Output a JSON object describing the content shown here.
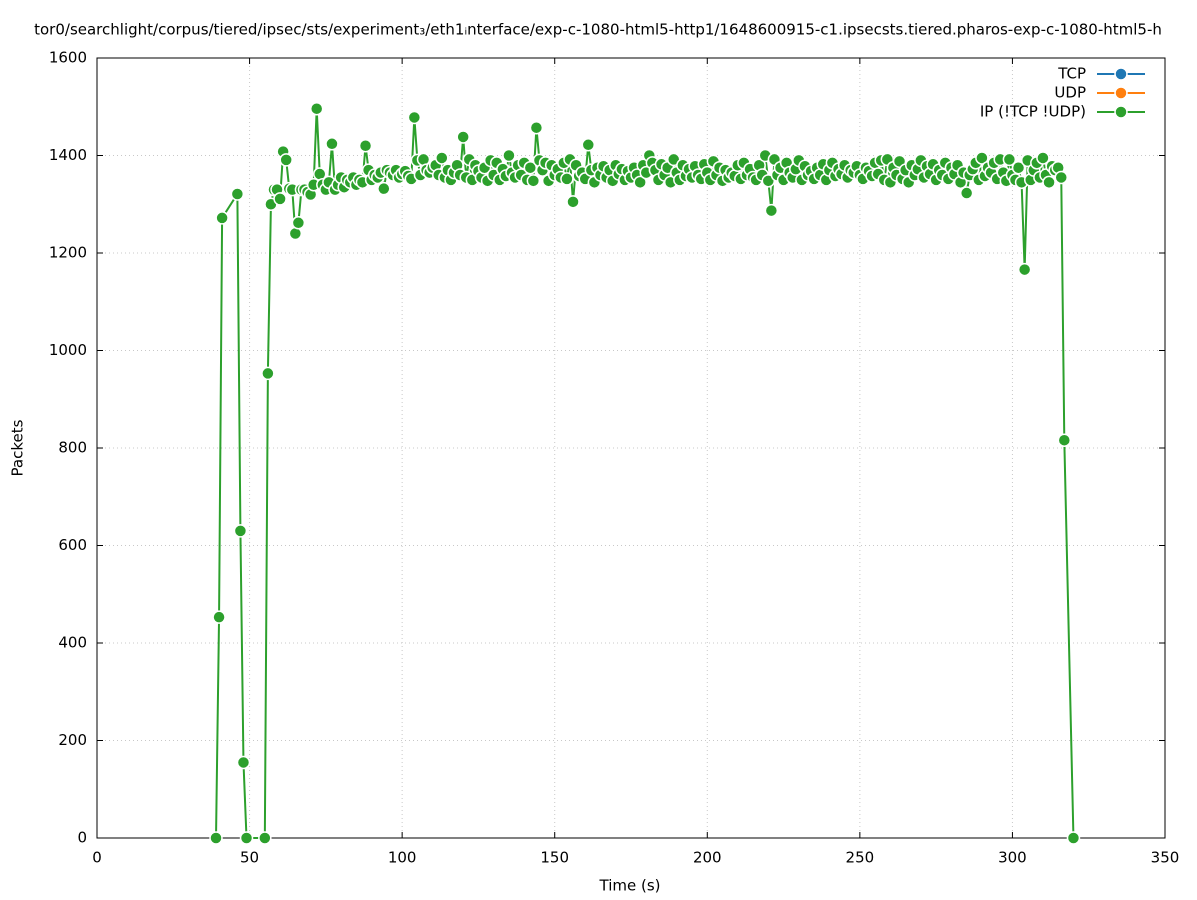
{
  "chart_data": {
    "type": "line",
    "title": "tor0/searchlight/corpus/tiered/ipsec/sts/experiment₃/eth1ᵢnterface/exp-c-1080-html5-http1/1648600915-c1.ipsecsts.tiered.pharos-exp-c-1080-html5-h",
    "xlabel": "Time (s)",
    "ylabel": "Packets",
    "xlim": [
      0,
      350
    ],
    "xticks": [
      0,
      50,
      100,
      150,
      200,
      250,
      300,
      350
    ],
    "ylim": [
      0,
      1600
    ],
    "yticks": [
      0,
      200,
      400,
      600,
      800,
      1000,
      1200,
      1400,
      1600
    ],
    "grid": true,
    "legend": "top-right",
    "series": [
      {
        "name": "TCP",
        "color": "#1f77b4",
        "x": [],
        "values": []
      },
      {
        "name": "UDP",
        "color": "#ff7f0e",
        "x": [],
        "values": []
      },
      {
        "name": "IP (!TCP  !UDP)",
        "color": "#2ca02c",
        "x": [
          39,
          40,
          41,
          46,
          47,
          48,
          49,
          55,
          56,
          57,
          58,
          59,
          60,
          61,
          62,
          63,
          64,
          65,
          66,
          67,
          68,
          69,
          70,
          71,
          72,
          73,
          74,
          75,
          76,
          77,
          78,
          79,
          80,
          81,
          82,
          83,
          84,
          85,
          86,
          87,
          88,
          89,
          90,
          91,
          92,
          93,
          94,
          95,
          96,
          97,
          98,
          99,
          100,
          101,
          102,
          103,
          104,
          105,
          106,
          107,
          108,
          109,
          110,
          111,
          112,
          113,
          114,
          115,
          116,
          117,
          118,
          119,
          120,
          121,
          122,
          123,
          124,
          125,
          126,
          127,
          128,
          129,
          130,
          131,
          132,
          133,
          134,
          135,
          136,
          137,
          138,
          139,
          140,
          141,
          142,
          143,
          144,
          145,
          146,
          147,
          148,
          149,
          150,
          151,
          152,
          153,
          154,
          155,
          156,
          157,
          158,
          159,
          160,
          161,
          162,
          163,
          164,
          165,
          166,
          167,
          168,
          169,
          170,
          171,
          172,
          173,
          174,
          175,
          176,
          177,
          178,
          179,
          180,
          181,
          182,
          183,
          184,
          185,
          186,
          187,
          188,
          189,
          190,
          191,
          192,
          193,
          194,
          195,
          196,
          197,
          198,
          199,
          200,
          201,
          202,
          203,
          204,
          205,
          206,
          207,
          208,
          209,
          210,
          211,
          212,
          213,
          214,
          215,
          216,
          217,
          218,
          219,
          220,
          221,
          222,
          223,
          224,
          225,
          226,
          227,
          228,
          229,
          230,
          231,
          232,
          233,
          234,
          235,
          236,
          237,
          238,
          239,
          240,
          241,
          242,
          243,
          244,
          245,
          246,
          247,
          248,
          249,
          250,
          251,
          252,
          253,
          254,
          255,
          256,
          257,
          258,
          259,
          260,
          261,
          262,
          263,
          264,
          265,
          266,
          267,
          268,
          269,
          270,
          271,
          272,
          273,
          274,
          275,
          276,
          277,
          278,
          279,
          280,
          281,
          282,
          283,
          284,
          285,
          286,
          287,
          288,
          289,
          290,
          291,
          292,
          293,
          294,
          295,
          296,
          297,
          298,
          299,
          300,
          301,
          302,
          303,
          304,
          305,
          306,
          307,
          308,
          309,
          310,
          311,
          312,
          313,
          314,
          315,
          316,
          317,
          320
        ],
        "values": [
          0,
          453,
          1272,
          1321,
          630,
          155,
          0,
          0,
          953,
          1300,
          1330,
          1330,
          1311,
          1408,
          1391,
          1332,
          1330,
          1240,
          1262,
          1330,
          1330,
          1325,
          1320,
          1340,
          1496,
          1362,
          1340,
          1330,
          1345,
          1424,
          1330,
          1340,
          1355,
          1335,
          1350,
          1345,
          1355,
          1340,
          1350,
          1345,
          1420,
          1370,
          1350,
          1360,
          1355,
          1365,
          1332,
          1370,
          1365,
          1360,
          1370,
          1355,
          1362,
          1368,
          1358,
          1352,
          1478,
          1390,
          1360,
          1392,
          1370,
          1365,
          1375,
          1380,
          1360,
          1395,
          1355,
          1370,
          1350,
          1365,
          1380,
          1360,
          1438,
          1355,
          1392,
          1350,
          1380,
          1368,
          1355,
          1375,
          1348,
          1390,
          1360,
          1385,
          1350,
          1372,
          1358,
          1400,
          1365,
          1355,
          1380,
          1360,
          1385,
          1350,
          1375,
          1348,
          1457,
          1390,
          1370,
          1385,
          1348,
          1380,
          1360,
          1372,
          1355,
          1385,
          1352,
          1392,
          1305,
          1380,
          1358,
          1365,
          1352,
          1422,
          1370,
          1345,
          1375,
          1360,
          1378,
          1355,
          1370,
          1348,
          1380,
          1362,
          1372,
          1350,
          1368,
          1355,
          1375,
          1360,
          1345,
          1380,
          1365,
          1400,
          1385,
          1370,
          1350,
          1382,
          1360,
          1375,
          1345,
          1392,
          1365,
          1350,
          1380,
          1358,
          1372,
          1355,
          1378,
          1360,
          1352,
          1382,
          1365,
          1350,
          1388,
          1360,
          1375,
          1348,
          1370,
          1355,
          1365,
          1358,
          1380,
          1352,
          1385,
          1360,
          1372,
          1355,
          1350,
          1380,
          1360,
          1400,
          1348,
          1287,
          1392,
          1360,
          1375,
          1350,
          1385,
          1365,
          1355,
          1372,
          1390,
          1350,
          1378,
          1360,
          1368,
          1352,
          1375,
          1360,
          1382,
          1350,
          1370,
          1385,
          1358,
          1372,
          1362,
          1380,
          1355,
          1370,
          1365,
          1378,
          1360,
          1352,
          1375,
          1368,
          1358,
          1385,
          1362,
          1390,
          1350,
          1392,
          1345,
          1375,
          1360,
          1388,
          1352,
          1370,
          1345,
          1380,
          1360,
          1372,
          1390,
          1355,
          1378,
          1362,
          1382,
          1350,
          1370,
          1360,
          1385,
          1352,
          1375,
          1362,
          1380,
          1345,
          1365,
          1323,
          1360,
          1372,
          1385,
          1350,
          1395,
          1358,
          1375,
          1365,
          1385,
          1352,
          1392,
          1365,
          1348,
          1392,
          1360,
          1350,
          1375,
          1345,
          1166,
          1390,
          1350,
          1370,
          1385,
          1355,
          1395,
          1360,
          1345,
          1378,
          1370,
          1375,
          1355,
          816,
          0
        ]
      }
    ]
  }
}
